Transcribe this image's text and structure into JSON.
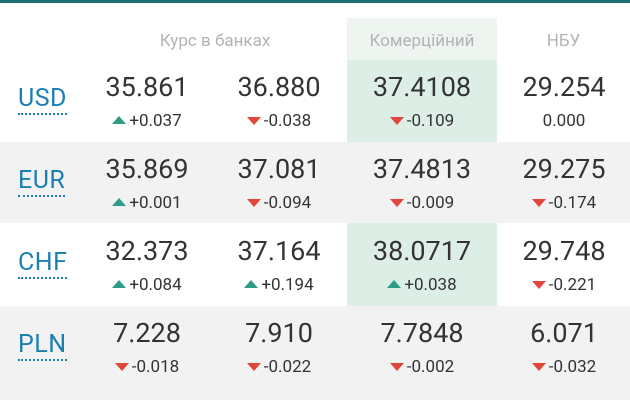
{
  "header": {
    "banks_label": "Курс в банках",
    "commercial_label": "Комерційний",
    "nbu_label": "НБУ"
  },
  "colors": {
    "accent_line": "#1f6f74",
    "up": "#2e9b87",
    "down": "#e0473a",
    "code": "#1b7fb1",
    "highlight": "#ddeee6"
  },
  "rows": [
    {
      "code": "USD",
      "buy": {
        "value": "35.861",
        "change": "+0.037",
        "dir": "up"
      },
      "sell": {
        "value": "36.880",
        "change": "-0.038",
        "dir": "down"
      },
      "commercial": {
        "value": "37.4108",
        "change": "-0.109",
        "dir": "down"
      },
      "nbu": {
        "value": "29.254",
        "change": "0.000",
        "dir": "none"
      }
    },
    {
      "code": "EUR",
      "buy": {
        "value": "35.869",
        "change": "+0.001",
        "dir": "up"
      },
      "sell": {
        "value": "37.081",
        "change": "-0.094",
        "dir": "down"
      },
      "commercial": {
        "value": "37.4813",
        "change": "-0.009",
        "dir": "down"
      },
      "nbu": {
        "value": "29.275",
        "change": "-0.174",
        "dir": "down"
      }
    },
    {
      "code": "CHF",
      "buy": {
        "value": "32.373",
        "change": "+0.084",
        "dir": "up"
      },
      "sell": {
        "value": "37.164",
        "change": "+0.194",
        "dir": "up"
      },
      "commercial": {
        "value": "38.0717",
        "change": "+0.038",
        "dir": "up"
      },
      "nbu": {
        "value": "29.748",
        "change": "-0.221",
        "dir": "down"
      }
    },
    {
      "code": "PLN",
      "buy": {
        "value": "7.228",
        "change": "-0.018",
        "dir": "down"
      },
      "sell": {
        "value": "7.910",
        "change": "-0.022",
        "dir": "down"
      },
      "commercial": {
        "value": "7.7848",
        "change": "-0.002",
        "dir": "down"
      },
      "nbu": {
        "value": "6.071",
        "change": "-0.032",
        "dir": "down"
      }
    }
  ]
}
